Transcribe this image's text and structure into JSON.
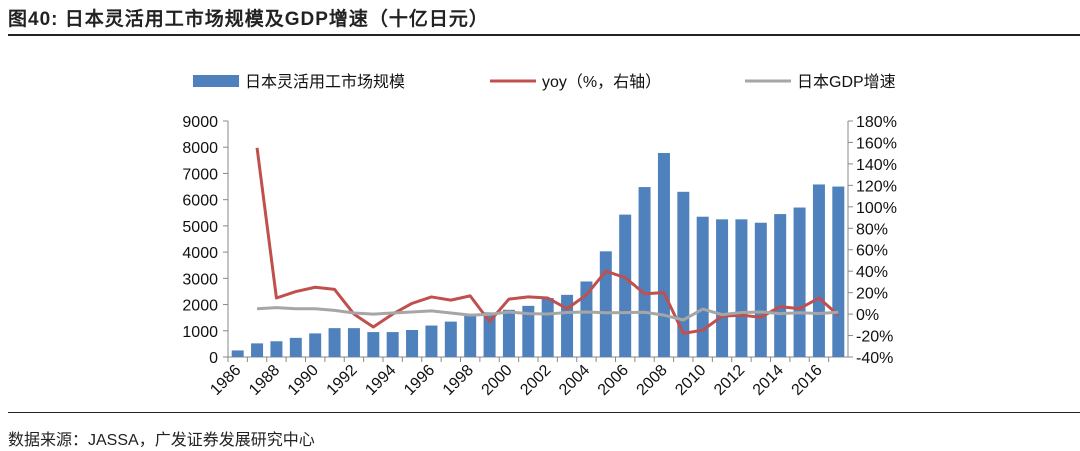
{
  "header": {
    "title": "图40:  日本灵活用工市场规模及GDP增速（十亿日元）"
  },
  "footer": {
    "source": "数据来源：JASSA，广发证券发展研究中心"
  },
  "chart_data": {
    "type": "bar+line",
    "title": "",
    "categories": [
      "1986",
      "1987",
      "1988",
      "1989",
      "1990",
      "1991",
      "1992",
      "1993",
      "1994",
      "1995",
      "1996",
      "1997",
      "1998",
      "1999",
      "2000",
      "2001",
      "2002",
      "2003",
      "2004",
      "2005",
      "2006",
      "2007",
      "2008",
      "2009",
      "2010",
      "2011",
      "2012",
      "2013",
      "2014",
      "2015",
      "2016",
      "2017"
    ],
    "x_tick_labels": [
      "1986",
      "1988",
      "1990",
      "1992",
      "1994",
      "1996",
      "1998",
      "2000",
      "2002",
      "2004",
      "2006",
      "2008",
      "2010",
      "2012",
      "2014",
      "2016"
    ],
    "left_axis": {
      "range": [
        0,
        9000
      ],
      "ticks": [
        "0",
        "1000",
        "2000",
        "3000",
        "4000",
        "5000",
        "6000",
        "7000",
        "8000",
        "9000"
      ]
    },
    "right_axis": {
      "range": [
        -40,
        180
      ],
      "ticks": [
        "-40%",
        "-20%",
        "0%",
        "20%",
        "40%",
        "60%",
        "80%",
        "100%",
        "120%",
        "140%",
        "160%",
        "180%"
      ]
    },
    "legend_position": "top",
    "series": [
      {
        "name": "日本灵活用工市场规模",
        "type": "bar",
        "axis": "left",
        "color": "#4F81BD",
        "values": [
          250,
          520,
          600,
          730,
          900,
          1100,
          1100,
          950,
          950,
          1030,
          1200,
          1350,
          1600,
          1700,
          1800,
          1950,
          2250,
          2370,
          2880,
          4030,
          5430,
          6480,
          7780,
          6300,
          5350,
          5250,
          5250,
          5120,
          5450,
          5700,
          6580,
          6500
        ]
      },
      {
        "name": "yoy（%，右轴）",
        "type": "line",
        "axis": "right",
        "color": "#C0504D",
        "values": [
          null,
          155,
          15,
          21,
          25,
          23,
          0,
          -12,
          0,
          10,
          16,
          13,
          17,
          -7,
          14,
          16,
          15,
          5,
          18,
          40,
          34,
          19,
          20,
          -18,
          -15,
          -2,
          -1,
          -3,
          7,
          5,
          15,
          -1
        ]
      },
      {
        "name": "日本GDP增速",
        "type": "line",
        "axis": "right",
        "color": "#A6A6A6",
        "values": [
          null,
          5,
          6,
          5,
          5,
          3.5,
          1,
          0,
          1,
          2,
          3,
          1,
          -1,
          -0.3,
          2,
          0.4,
          0.1,
          1.5,
          2,
          1.3,
          1.4,
          1.7,
          -1,
          -5.5,
          4.7,
          -0.5,
          1.5,
          2,
          0.4,
          1.2,
          0.6,
          1.7
        ]
      }
    ]
  }
}
